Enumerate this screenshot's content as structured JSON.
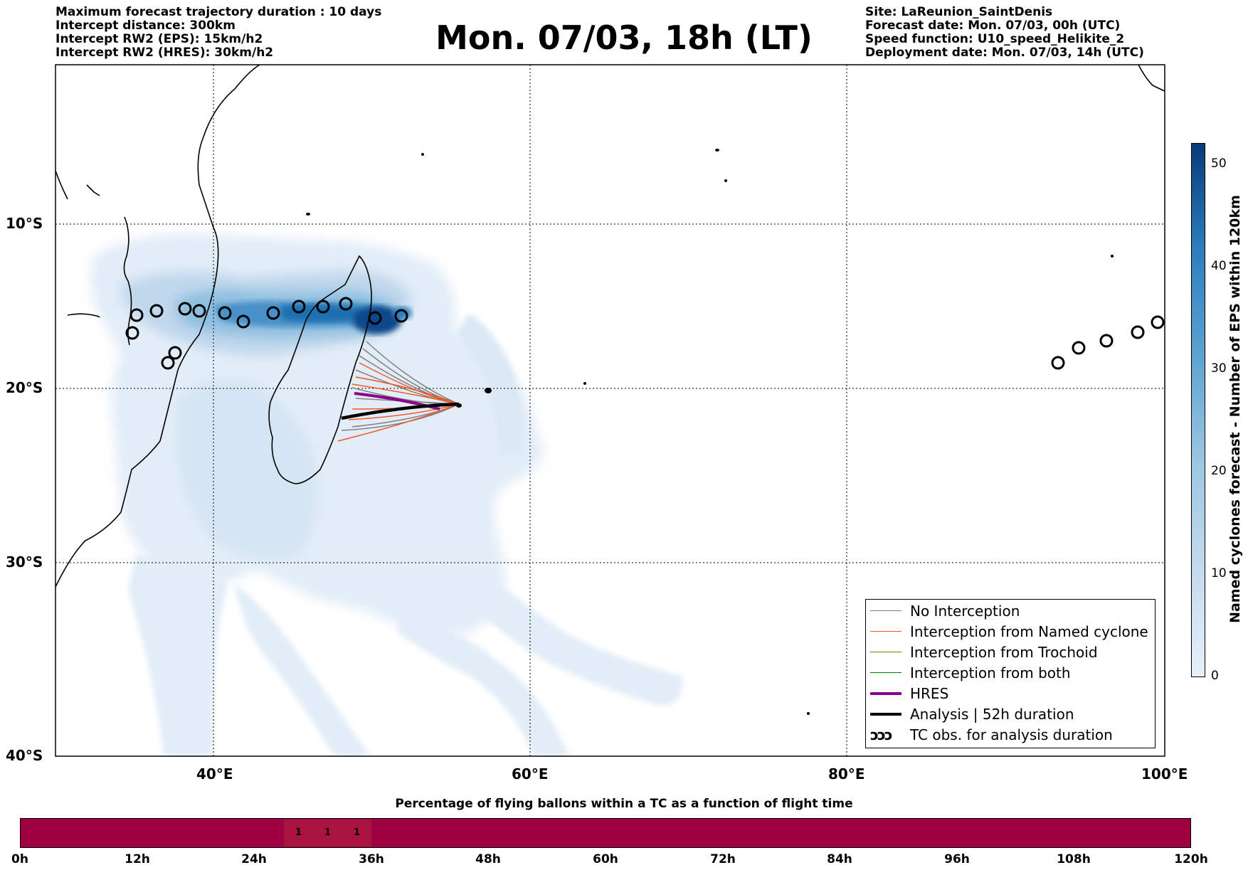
{
  "header_left": [
    "Maximum forecast trajectory duration : 10 days",
    "Intercept distance: 300km",
    "Intercept RW2 (EPS):  15km/h2",
    "Intercept RW2 (HRES): 30km/h2"
  ],
  "title": "Mon. 07/03, 18h (LT)",
  "header_right": [
    "Site: LaReunion_SaintDenis",
    "Forecast date: Mon. 07/03, 00h (UTC)",
    "Speed function: U10_speed_Helikite_2",
    "Deployment date: Mon. 07/03, 14h (UTC)"
  ],
  "map": {
    "lat_labels": [
      "10°S",
      "20°S",
      "30°S",
      "40°S"
    ],
    "lon_labels": [
      "40°E",
      "60°E",
      "80°E",
      "100°E"
    ],
    "extent": {
      "lon_min": 30,
      "lon_max": 100,
      "lat_min": -40,
      "lat_max": 0
    },
    "gridlines": "dotted"
  },
  "legend": {
    "items": [
      {
        "label": "No Interception",
        "color": "#808080"
      },
      {
        "label": "Interception from Named cyclone",
        "color": "#f05a28"
      },
      {
        "label": "Interception from Trochoid",
        "color": "#808000"
      },
      {
        "label": "Interception from both",
        "color": "#008000"
      },
      {
        "label": "HRES",
        "color": "#8b008b"
      },
      {
        "label": "Analysis | 52h duration",
        "color": "#000000"
      },
      {
        "label": "TC obs. for analysis duration",
        "color": "#000000",
        "symbol": "ↄↄↄ"
      }
    ]
  },
  "colorbar": {
    "title": "Named cyclones forecast - Number of EPS within 120km",
    "ticks": [
      "0",
      "10",
      "20",
      "30",
      "40",
      "50"
    ],
    "range": [
      0,
      52
    ]
  },
  "flight_time": {
    "title": "Percentage of flying ballons within a TC as a function of flight time",
    "ticks": [
      "0h",
      "12h",
      "24h",
      "36h",
      "48h",
      "60h",
      "72h",
      "84h",
      "96h",
      "108h",
      "120h"
    ],
    "cells": [
      {
        "hour": 28.5,
        "value": "1"
      },
      {
        "hour": 31.5,
        "value": "1"
      },
      {
        "hour": 34.5,
        "value": "1"
      }
    ]
  }
}
